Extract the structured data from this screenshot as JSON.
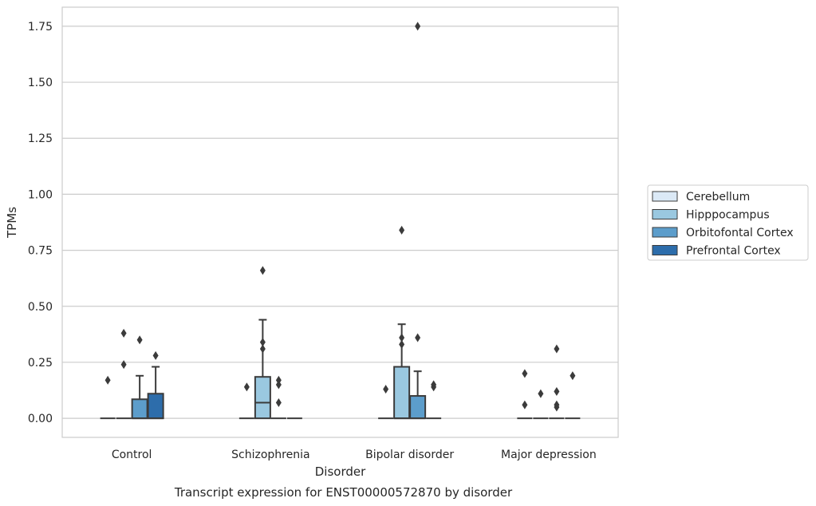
{
  "chart_data": {
    "type": "box",
    "title": "",
    "caption": "Transcript expression for ENST00000572870 by disorder",
    "xlabel": "Disorder",
    "ylabel": "TPMs",
    "ylim": [
      -0.085,
      1.835
    ],
    "yticks": [
      "0.00",
      "0.25",
      "0.50",
      "0.75",
      "1.00",
      "1.25",
      "1.50",
      "1.75"
    ],
    "ytick_values": [
      0,
      0.25,
      0.5,
      0.75,
      1.0,
      1.25,
      1.5,
      1.75
    ],
    "grid": true,
    "legend_position": "right",
    "categories": [
      "Control",
      "Schizophrenia",
      "Bipolar disorder",
      "Major depression"
    ],
    "series": [
      {
        "name": "Cerebellum",
        "color": "#dbe9f6",
        "boxes": [
          {
            "min": 0,
            "q1": 0,
            "median": 0,
            "q3": 0,
            "max": 0,
            "outliers": [
              0.17
            ]
          },
          {
            "min": 0,
            "q1": 0,
            "median": 0,
            "q3": 0,
            "max": 0,
            "outliers": [
              0.14
            ]
          },
          {
            "min": 0,
            "q1": 0,
            "median": 0,
            "q3": 0,
            "max": 0,
            "outliers": [
              0.13
            ]
          },
          {
            "min": 0,
            "q1": 0,
            "median": 0,
            "q3": 0,
            "max": 0,
            "outliers": [
              0.2,
              0.06
            ]
          }
        ]
      },
      {
        "name": "Hipppocampus",
        "color": "#9ac8e0",
        "boxes": [
          {
            "min": 0,
            "q1": 0,
            "median": 0,
            "q3": 0,
            "max": 0,
            "outliers": [
              0.38,
              0.24
            ]
          },
          {
            "min": 0,
            "q1": 0,
            "median": 0.07,
            "q3": 0.185,
            "max": 0.44,
            "outliers": [
              0.66,
              0.34,
              0.31
            ]
          },
          {
            "min": 0,
            "q1": 0,
            "median": 0,
            "q3": 0.23,
            "max": 0.42,
            "outliers": [
              0.84,
              0.36,
              0.33
            ]
          },
          {
            "min": 0,
            "q1": 0,
            "median": 0,
            "q3": 0,
            "max": 0,
            "outliers": [
              0.11
            ]
          }
        ]
      },
      {
        "name": "Orbitofontal Cortex",
        "color": "#5c9dcb",
        "boxes": [
          {
            "min": 0,
            "q1": 0,
            "median": 0,
            "q3": 0.085,
            "max": 0.19,
            "outliers": [
              0.35
            ]
          },
          {
            "min": 0,
            "q1": 0,
            "median": 0,
            "q3": 0,
            "max": 0,
            "outliers": [
              0.17,
              0.15,
              0.07
            ]
          },
          {
            "min": 0,
            "q1": 0,
            "median": 0,
            "q3": 0.1,
            "max": 0.21,
            "outliers": [
              1.75,
              0.36
            ]
          },
          {
            "min": 0,
            "q1": 0,
            "median": 0,
            "q3": 0,
            "max": 0,
            "outliers": [
              0.31,
              0.12,
              0.06,
              0.05
            ]
          }
        ]
      },
      {
        "name": "Prefrontal Cortex",
        "color": "#2d6dab",
        "boxes": [
          {
            "min": 0,
            "q1": 0,
            "median": 0,
            "q3": 0.11,
            "max": 0.23,
            "outliers": [
              0.28
            ]
          },
          {
            "min": 0,
            "q1": 0,
            "median": 0,
            "q3": 0,
            "max": 0,
            "outliers": []
          },
          {
            "min": 0,
            "q1": 0,
            "median": 0,
            "q3": 0,
            "max": 0,
            "outliers": [
              0.15,
              0.14
            ]
          },
          {
            "min": 0,
            "q1": 0,
            "median": 0,
            "q3": 0,
            "max": 0,
            "outliers": [
              0.19
            ]
          }
        ]
      }
    ]
  }
}
